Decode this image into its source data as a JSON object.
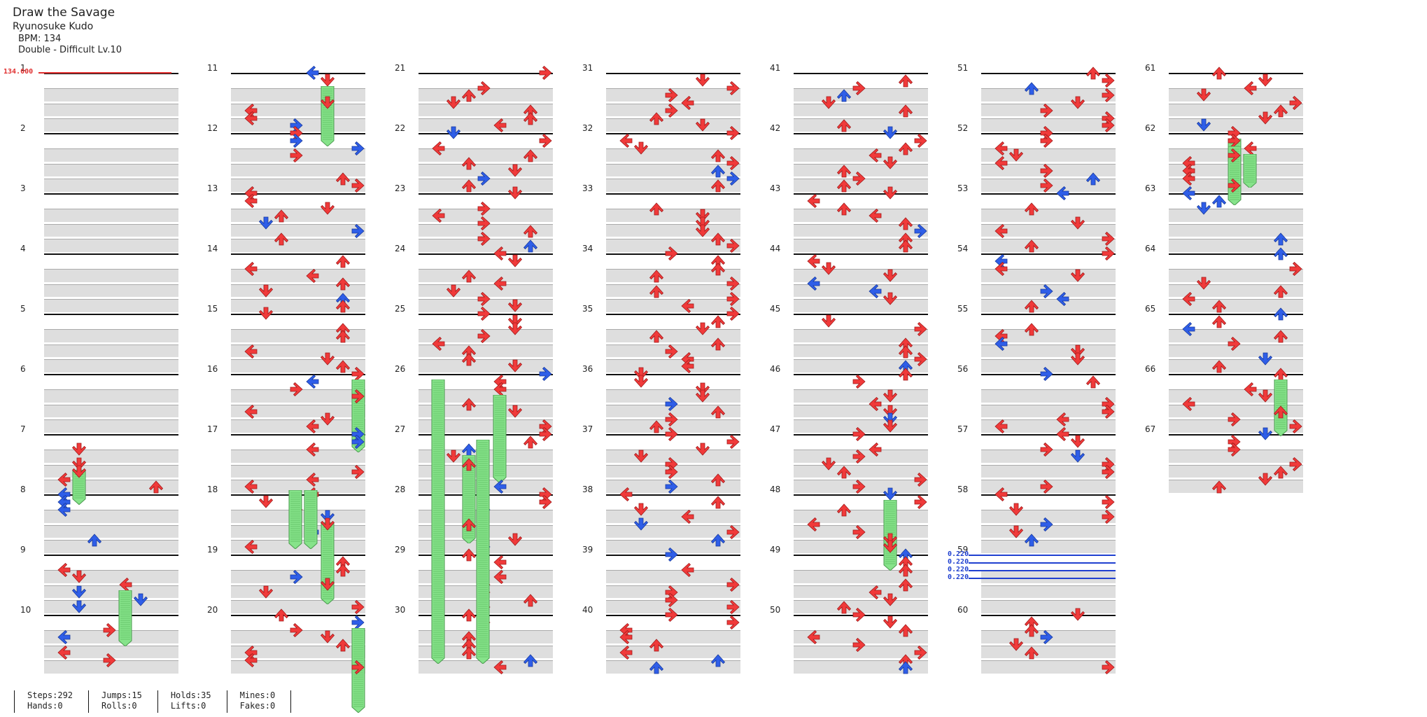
{
  "song": {
    "title": "Draw the Savage",
    "artist": "Ryunosuke Kudo",
    "bpm_label": "BPM: 134",
    "difficulty_label": "Double - Difficult Lv.10"
  },
  "bpm_marker": {
    "value_label": "134.000"
  },
  "speed_markers": [
    "0.220",
    "0.220",
    "0.220",
    "0.220"
  ],
  "colors": {
    "red_arrow": "#f03a3a",
    "blue_arrow": "#2f5ee8",
    "hold_green": "#86e38a",
    "band_gray": "#dedede",
    "bpm_red": "#e03030",
    "speed_blue": "#2040d0"
  },
  "icons": {
    "arrow": "arrow-icon",
    "hold": "hold-icon"
  },
  "columns": [
    {
      "measures": [
        "1",
        "2",
        "3",
        "4",
        "5",
        "6",
        "7",
        "8",
        "9",
        "10"
      ]
    },
    {
      "measures": [
        "11",
        "12",
        "13",
        "14",
        "15",
        "16",
        "17",
        "18",
        "19",
        "20"
      ]
    },
    {
      "measures": [
        "21",
        "22",
        "23",
        "24",
        "25",
        "26",
        "27",
        "28",
        "29",
        "30"
      ]
    },
    {
      "measures": [
        "31",
        "32",
        "33",
        "34",
        "35",
        "36",
        "37",
        "38",
        "39",
        "40"
      ]
    },
    {
      "measures": [
        "41",
        "42",
        "43",
        "44",
        "45",
        "46",
        "47",
        "48",
        "49",
        "50"
      ]
    },
    {
      "measures": [
        "51",
        "52",
        "53",
        "54",
        "55",
        "56",
        "57",
        "58",
        "59",
        "60"
      ]
    },
    {
      "measures": [
        "61",
        "62",
        "63",
        "64",
        "65",
        "66",
        "67"
      ]
    }
  ],
  "stats": [
    {
      "line1": "Steps:292",
      "line2": "Hands:0"
    },
    {
      "line1": "Jumps:15",
      "line2": "Rolls:0"
    },
    {
      "line1": "Holds:35",
      "line2": "Lifts:0"
    },
    {
      "line1": "Mines:0",
      "line2": "Fakes:0"
    }
  ]
}
